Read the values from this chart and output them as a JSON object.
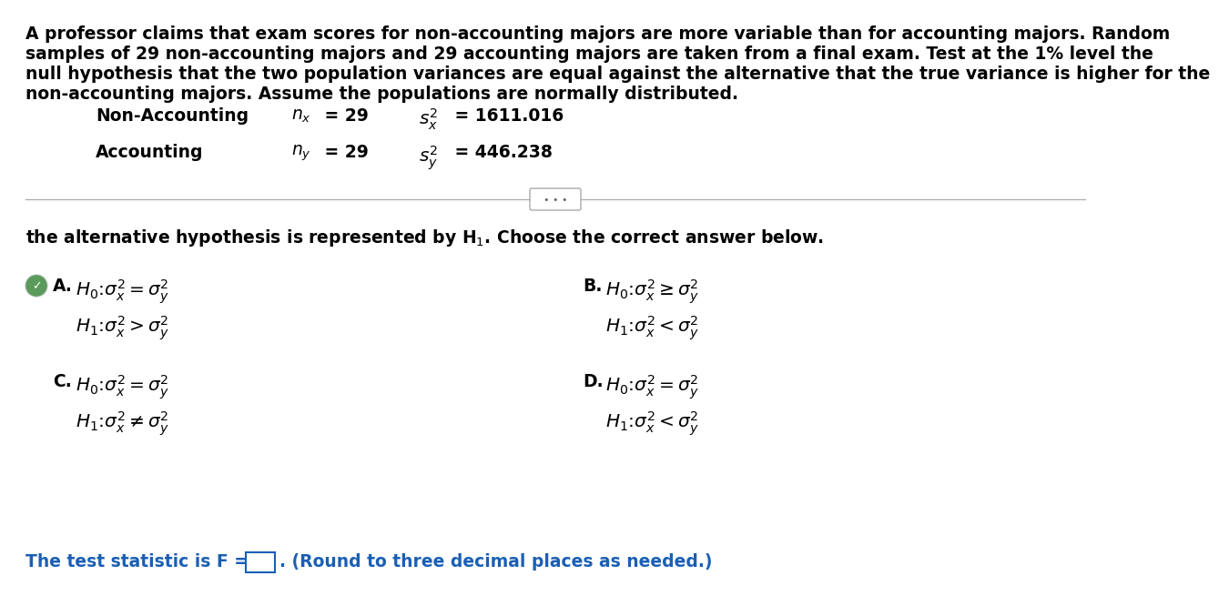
{
  "background_color": "#ffffff",
  "paragraph_lines": [
    "A professor claims that exam scores for non-accounting majors are more variable than for accounting majors. Random",
    "samples of 29 non-accounting majors and 29 accounting majors are taken from a final exam. Test at the 1% level the",
    "null hypothesis that the two population variances are equal against the alternative that the true variance is higher for the",
    "non-accounting majors. Assume the populations are normally distributed."
  ],
  "non_accounting_label": "Non-Accounting",
  "accounting_label": "Accounting",
  "subtitle_text": "the alternative hypothesis is represented by H$_1$. Choose the correct answer below.",
  "option_A_selected": true,
  "test_stat_prefix": "The test statistic is F =",
  "test_stat_suffix": ". (Round to three decimal places as needed.)",
  "text_color": "#000000",
  "blue_color": "#1a5fb4",
  "green_color": "#4a8c4a",
  "gray_color": "#777777",
  "font_size": 13.5,
  "font_size_formula": 14.5
}
